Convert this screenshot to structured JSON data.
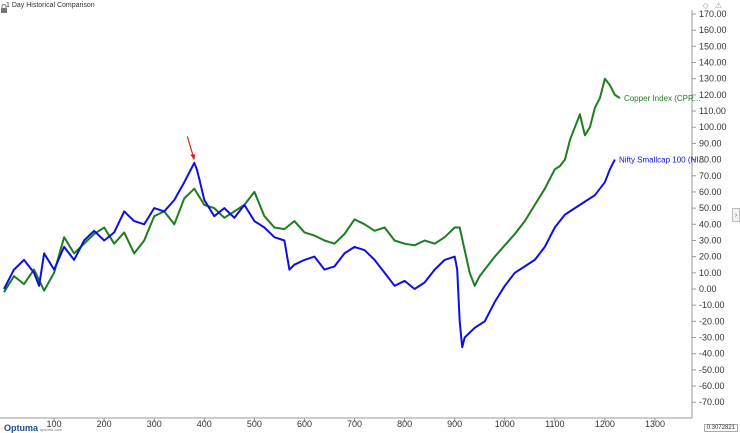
{
  "app": {
    "title": "1 Day Historical Comparison",
    "brand": "Optuma",
    "brand_url": "optuma.com",
    "scale_readout": "0.3072821",
    "top_icons": "◇ ⚠"
  },
  "chart_data": {
    "type": "line",
    "title": "1 Day Historical Comparison",
    "xlabel": "",
    "ylabel": "",
    "xlim": [
      0,
      1400
    ],
    "ylim": [
      -80,
      175
    ],
    "x_ticks": [
      100,
      200,
      300,
      400,
      500,
      600,
      700,
      800,
      900,
      1000,
      1100,
      1200,
      1300
    ],
    "y_ticks": [
      170,
      160,
      150,
      140,
      130,
      120,
      110,
      100,
      90,
      80,
      70,
      60,
      50,
      40,
      30,
      20,
      10,
      0,
      -10,
      -20,
      -30,
      -40,
      -50,
      -60,
      -70
    ],
    "y_tick_labels": [
      "170.00",
      "160.00",
      "150.00",
      "140.00",
      "130.00",
      "120.00",
      "110.00",
      "100.00",
      "90.00",
      "80.00",
      "70.00",
      "60.00",
      "50.00",
      "40.00",
      "30.00",
      "20.00",
      "10.00",
      "0.00",
      "-10.00",
      "-20.00",
      "-30.00",
      "-40.00",
      "-50.00",
      "-60.00",
      "-70.00"
    ],
    "grid": false,
    "annotations": [
      {
        "type": "arrow",
        "x": 380,
        "y": 77,
        "color": "#e02020"
      }
    ],
    "series": [
      {
        "name": "Copper Index (CPR...",
        "color": "#1e7d1e",
        "points": [
          [
            0,
            -2
          ],
          [
            20,
            8
          ],
          [
            40,
            3
          ],
          [
            60,
            12
          ],
          [
            80,
            -1
          ],
          [
            100,
            10
          ],
          [
            120,
            32
          ],
          [
            140,
            22
          ],
          [
            160,
            28
          ],
          [
            180,
            34
          ],
          [
            200,
            38
          ],
          [
            220,
            28
          ],
          [
            240,
            35
          ],
          [
            260,
            22
          ],
          [
            280,
            30
          ],
          [
            300,
            45
          ],
          [
            320,
            48
          ],
          [
            340,
            40
          ],
          [
            360,
            56
          ],
          [
            380,
            62
          ],
          [
            400,
            52
          ],
          [
            420,
            50
          ],
          [
            440,
            44
          ],
          [
            460,
            48
          ],
          [
            480,
            52
          ],
          [
            500,
            60
          ],
          [
            520,
            45
          ],
          [
            540,
            38
          ],
          [
            560,
            37
          ],
          [
            580,
            42
          ],
          [
            600,
            35
          ],
          [
            620,
            33
          ],
          [
            640,
            30
          ],
          [
            660,
            28
          ],
          [
            680,
            34
          ],
          [
            700,
            43
          ],
          [
            720,
            40
          ],
          [
            740,
            36
          ],
          [
            760,
            38
          ],
          [
            780,
            30
          ],
          [
            800,
            28
          ],
          [
            820,
            27
          ],
          [
            840,
            30
          ],
          [
            860,
            28
          ],
          [
            880,
            32
          ],
          [
            900,
            38
          ],
          [
            910,
            38
          ],
          [
            920,
            24
          ],
          [
            930,
            10
          ],
          [
            940,
            2
          ],
          [
            950,
            8
          ],
          [
            960,
            12
          ],
          [
            980,
            20
          ],
          [
            1000,
            27
          ],
          [
            1020,
            34
          ],
          [
            1040,
            42
          ],
          [
            1060,
            52
          ],
          [
            1080,
            62
          ],
          [
            1100,
            74
          ],
          [
            1110,
            76
          ],
          [
            1120,
            80
          ],
          [
            1130,
            92
          ],
          [
            1140,
            100
          ],
          [
            1150,
            108
          ],
          [
            1160,
            95
          ],
          [
            1170,
            100
          ],
          [
            1180,
            112
          ],
          [
            1190,
            118
          ],
          [
            1200,
            130
          ],
          [
            1210,
            126
          ],
          [
            1220,
            120
          ],
          [
            1230,
            118
          ]
        ]
      },
      {
        "name": "Nifty Smallcap 100 (NI...",
        "color": "#1010dd",
        "points": [
          [
            0,
            0
          ],
          [
            20,
            12
          ],
          [
            40,
            18
          ],
          [
            60,
            10
          ],
          [
            70,
            2
          ],
          [
            80,
            22
          ],
          [
            100,
            12
          ],
          [
            120,
            26
          ],
          [
            140,
            18
          ],
          [
            160,
            30
          ],
          [
            180,
            36
          ],
          [
            200,
            30
          ],
          [
            220,
            35
          ],
          [
            240,
            48
          ],
          [
            260,
            42
          ],
          [
            280,
            40
          ],
          [
            300,
            50
          ],
          [
            320,
            48
          ],
          [
            340,
            55
          ],
          [
            360,
            66
          ],
          [
            370,
            72
          ],
          [
            380,
            78
          ],
          [
            385,
            74
          ],
          [
            390,
            68
          ],
          [
            400,
            55
          ],
          [
            420,
            45
          ],
          [
            440,
            50
          ],
          [
            460,
            44
          ],
          [
            480,
            52
          ],
          [
            500,
            42
          ],
          [
            520,
            38
          ],
          [
            540,
            32
          ],
          [
            560,
            30
          ],
          [
            570,
            12
          ],
          [
            580,
            15
          ],
          [
            600,
            18
          ],
          [
            620,
            20
          ],
          [
            640,
            12
          ],
          [
            660,
            14
          ],
          [
            680,
            22
          ],
          [
            700,
            26
          ],
          [
            720,
            24
          ],
          [
            740,
            18
          ],
          [
            760,
            10
          ],
          [
            780,
            2
          ],
          [
            800,
            5
          ],
          [
            820,
            0
          ],
          [
            840,
            4
          ],
          [
            860,
            12
          ],
          [
            880,
            18
          ],
          [
            900,
            20
          ],
          [
            905,
            12
          ],
          [
            910,
            -20
          ],
          [
            915,
            -36
          ],
          [
            920,
            -30
          ],
          [
            940,
            -24
          ],
          [
            960,
            -20
          ],
          [
            980,
            -8
          ],
          [
            1000,
            2
          ],
          [
            1020,
            10
          ],
          [
            1040,
            14
          ],
          [
            1060,
            18
          ],
          [
            1080,
            26
          ],
          [
            1100,
            38
          ],
          [
            1120,
            46
          ],
          [
            1140,
            50
          ],
          [
            1160,
            54
          ],
          [
            1180,
            58
          ],
          [
            1200,
            66
          ],
          [
            1210,
            74
          ],
          [
            1220,
            80
          ]
        ]
      }
    ]
  }
}
